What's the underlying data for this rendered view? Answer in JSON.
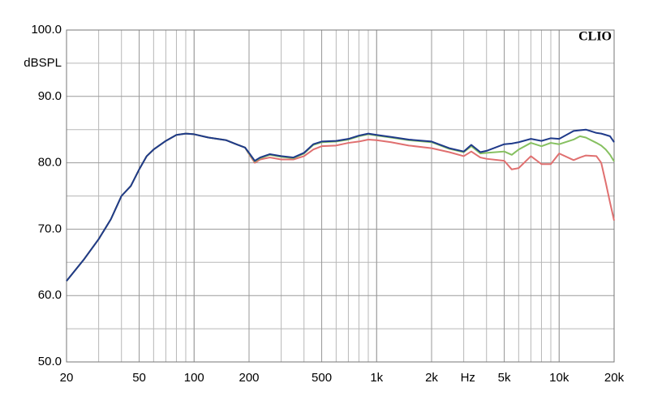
{
  "chart_data": {
    "type": "line",
    "watermark": "CLIO",
    "y_axis_label": "dBSPL",
    "x_axis_label": "Hz",
    "log_x": true,
    "grid": true,
    "minor_grid": true,
    "x": [
      20,
      25,
      30,
      35,
      40,
      45,
      50,
      55,
      60,
      70,
      80,
      90,
      100,
      120,
      150,
      170,
      190,
      200,
      215,
      230,
      260,
      300,
      350,
      400,
      450,
      500,
      600,
      700,
      800,
      900,
      1000,
      1200,
      1500,
      2000,
      2500,
      3000,
      3300,
      3700,
      4000,
      5000,
      5500,
      6000,
      7000,
      8000,
      9000,
      10000,
      12000,
      13000,
      14000,
      16000,
      17000,
      18000,
      19000,
      20000
    ],
    "series": [
      {
        "color": "#e07070",
        "values": [
          62.2,
          65.5,
          68.5,
          71.5,
          75,
          76.5,
          79,
          81,
          82,
          83.3,
          84.2,
          84.4,
          84.3,
          83.8,
          83.4,
          82.8,
          82.3,
          81.3,
          80,
          80.5,
          80.8,
          80.5,
          80.5,
          81,
          82,
          82.5,
          82.6,
          83,
          83.2,
          83.5,
          83.4,
          83.1,
          82.6,
          82.2,
          81.6,
          81,
          81.7,
          80.8,
          80.6,
          80.3,
          79,
          79.2,
          81,
          79.8,
          79.8,
          81.4,
          80.4,
          80.8,
          81.1,
          81,
          80,
          77,
          74,
          71.3
        ]
      },
      {
        "color": "#86c060",
        "values": [
          62.2,
          65.5,
          68.5,
          71.5,
          75,
          76.5,
          79,
          81,
          82,
          83.3,
          84.2,
          84.4,
          84.3,
          83.8,
          83.4,
          82.8,
          82.3,
          81.4,
          80.2,
          80.7,
          81.2,
          80.9,
          80.7,
          81.4,
          82.7,
          83.1,
          83.2,
          83.5,
          84,
          84.3,
          84.1,
          83.8,
          83.4,
          83.1,
          82.1,
          81.6,
          82.5,
          81.4,
          81.5,
          81.7,
          81.2,
          82,
          83,
          82.5,
          83,
          82.8,
          83.5,
          84,
          83.8,
          83,
          82.6,
          82,
          81.2,
          80.2
        ]
      },
      {
        "color": "#1f3a8a",
        "values": [
          62.2,
          65.5,
          68.5,
          71.5,
          75,
          76.5,
          79,
          81,
          82,
          83.3,
          84.2,
          84.4,
          84.3,
          83.8,
          83.4,
          82.8,
          82.3,
          81.5,
          80.3,
          80.8,
          81.3,
          81,
          80.8,
          81.5,
          82.8,
          83.2,
          83.3,
          83.6,
          84.1,
          84.4,
          84.2,
          83.9,
          83.5,
          83.2,
          82.2,
          81.7,
          82.7,
          81.6,
          81.8,
          82.8,
          82.9,
          83.1,
          83.6,
          83.3,
          83.7,
          83.6,
          84.8,
          84.9,
          85,
          84.5,
          84.4,
          84.2,
          84,
          83.1
        ]
      }
    ],
    "xlim": [
      20,
      20000
    ],
    "xticks": [
      20,
      50,
      100,
      200,
      500,
      {
        "value": 1000,
        "label": "1k"
      },
      {
        "value": 2000,
        "label": "2k"
      },
      {
        "value": 5000,
        "label": "5k"
      },
      {
        "value": 10000,
        "label": "10k"
      },
      {
        "value": 20000,
        "label": "20k"
      }
    ],
    "ylim": [
      50,
      100
    ],
    "yticks": [
      {
        "value": 50,
        "label": "50.0"
      },
      {
        "value": 60,
        "label": "60.0"
      },
      {
        "value": 70,
        "label": "70.0"
      },
      {
        "value": 80,
        "label": "80.0"
      },
      {
        "value": 90,
        "label": "90.0"
      },
      {
        "value": 100,
        "label": "100.0"
      }
    ]
  }
}
